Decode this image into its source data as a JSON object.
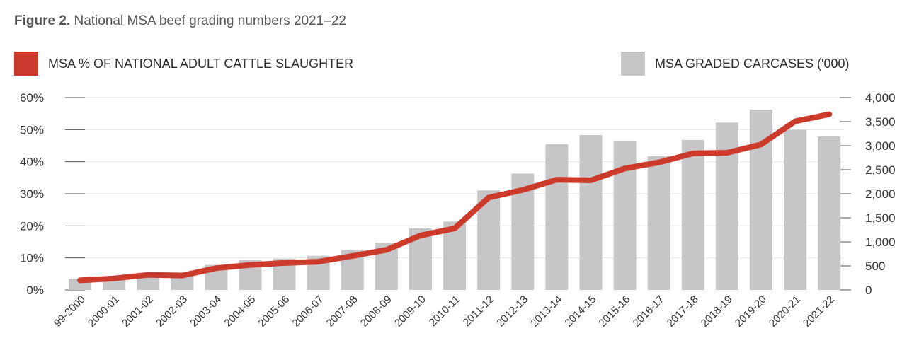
{
  "title": {
    "prefix": "Figure 2.",
    "text": "National MSA beef grading numbers 2021–22"
  },
  "colors": {
    "line": "#cc3a2c",
    "bars": "#c6c5c8",
    "grid": "#e6e6e6",
    "axis_ticks": "#555555"
  },
  "chart_data": {
    "type": "bar",
    "categories": [
      "99-2000",
      "2000-01",
      "2001-02",
      "2002-03",
      "2003-04",
      "2004-05",
      "2005-06",
      "2006-07",
      "2007-08",
      "2008-09",
      "2009-10",
      "2010-11",
      "2011-12",
      "2012-13",
      "2013-14",
      "2014-15",
      "2015-16",
      "2016-17",
      "2017-18",
      "2018-19",
      "2019-20",
      "2020-21",
      "2021-22"
    ],
    "series": [
      {
        "name": "MSA GRADED CARCASES ('000)",
        "type": "bar",
        "axis": "right",
        "values": [
          230,
          280,
          310,
          320,
          520,
          620,
          650,
          710,
          830,
          980,
          1280,
          1420,
          2070,
          2420,
          3030,
          3220,
          3090,
          2780,
          3120,
          3480,
          3750,
          3330,
          3190
        ]
      },
      {
        "name": "MSA % OF NATIONAL ADULT CATTLE SLAUGHTER",
        "type": "line",
        "axis": "left",
        "values": [
          3.0,
          3.6,
          4.7,
          4.5,
          6.8,
          7.8,
          8.4,
          8.8,
          10.6,
          12.5,
          17.0,
          19.2,
          28.8,
          31.2,
          34.4,
          34.2,
          37.9,
          39.8,
          42.6,
          42.8,
          45.4,
          52.6,
          54.8
        ]
      }
    ],
    "y_left": {
      "ylim": [
        0,
        60
      ],
      "ticks": [
        "0%",
        "10%",
        "20%",
        "30%",
        "40%",
        "50%",
        "60%"
      ]
    },
    "y_right": {
      "ylim": [
        0,
        4000
      ],
      "ticks": [
        "0",
        "500",
        "1,000",
        "1,500",
        "2,000",
        "2,500",
        "3,000",
        "3,500",
        "4,000"
      ]
    },
    "grid": true,
    "legend_placement": "top"
  }
}
